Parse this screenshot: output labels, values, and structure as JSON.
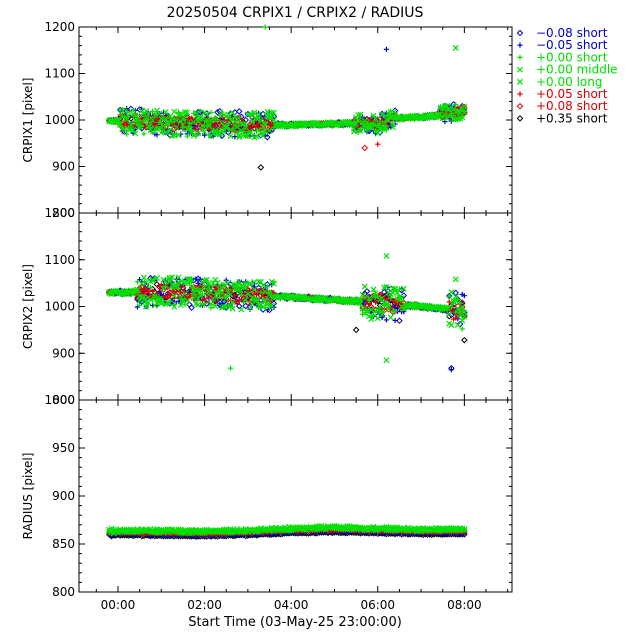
{
  "title": "20250504 CRPIX1 / CRPIX2 / RADIUS",
  "chart_data": {
    "type": "scatter",
    "title": "20250504 CRPIX1 / CRPIX2 / RADIUS",
    "xlabel": "Start Time (03-May-25 23:00:00)",
    "x_unit": "hours after 03-May-25 23:00:00",
    "x_ticks": [
      "00:00",
      "02:00",
      "04:00",
      "06:00",
      "08:00"
    ],
    "xlim": [
      -0.9,
      9.1
    ],
    "panels": [
      {
        "key": "crpix1",
        "ylabel": "CRPIX1 [pixel]",
        "ylim": [
          800,
          1200
        ],
        "y_ticks": [
          800,
          900,
          1000,
          1100,
          1200
        ],
        "trend": [
          [
            0.0,
            998
          ],
          [
            0.8,
            995
          ],
          [
            1.6,
            993
          ],
          [
            2.4,
            992
          ],
          [
            3.2,
            990
          ],
          [
            4.0,
            989
          ],
          [
            5.0,
            992
          ],
          [
            5.6,
            993
          ],
          [
            6.0,
            990
          ],
          [
            6.4,
            1003
          ],
          [
            7.2,
            1008
          ],
          [
            8.0,
            1020
          ]
        ],
        "scatter_windows": [
          [
            0.0,
            3.6,
            28
          ],
          [
            5.4,
            6.4,
            20
          ],
          [
            7.4,
            8.1,
            18
          ]
        ],
        "outliers": [
          {
            "x": 3.4,
            "y": 1200,
            "series": 2
          },
          {
            "x": 6.2,
            "y": 1152,
            "series": 1
          },
          {
            "x": 7.8,
            "y": 1155,
            "series": 3
          },
          {
            "x": 3.3,
            "y": 898,
            "series": 7
          },
          {
            "x": 6.0,
            "y": 948,
            "series": 5
          },
          {
            "x": 5.7,
            "y": 940,
            "series": 6
          }
        ]
      },
      {
        "key": "crpix2",
        "ylabel": "CRPIX2 [pixel]",
        "ylim": [
          800,
          1200
        ],
        "y_ticks": [
          800,
          900,
          1000,
          1100,
          1200
        ],
        "trend": [
          [
            0.0,
            1030
          ],
          [
            1.0,
            1032
          ],
          [
            2.0,
            1028
          ],
          [
            3.0,
            1024
          ],
          [
            4.0,
            1020
          ],
          [
            5.0,
            1014
          ],
          [
            6.0,
            1008
          ],
          [
            7.0,
            1000
          ],
          [
            8.0,
            990
          ]
        ],
        "scatter_windows": [
          [
            0.4,
            3.6,
            32
          ],
          [
            5.6,
            6.6,
            36
          ],
          [
            7.6,
            8.1,
            40
          ]
        ],
        "outliers": [
          {
            "x": 2.6,
            "y": 868,
            "series": 2
          },
          {
            "x": 6.2,
            "y": 1108,
            "series": 3
          },
          {
            "x": 6.2,
            "y": 885,
            "series": 3
          },
          {
            "x": 7.8,
            "y": 1058,
            "series": 3
          },
          {
            "x": 7.7,
            "y": 868,
            "series": 0
          },
          {
            "x": 7.7,
            "y": 865,
            "series": 1
          },
          {
            "x": 8.0,
            "y": 928,
            "series": 7
          },
          {
            "x": 5.5,
            "y": 950,
            "series": 7
          }
        ]
      },
      {
        "key": "radius",
        "ylabel": "RADIUS [pixel]",
        "ylim": [
          800,
          1000
        ],
        "y_ticks": [
          800,
          850,
          900,
          950,
          1000
        ],
        "series_offsets": [
          0,
          -0.5,
          3,
          2,
          4,
          2,
          1,
          -2
        ],
        "trend": [
          [
            0.0,
            861
          ],
          [
            2.0,
            860
          ],
          [
            3.0,
            861
          ],
          [
            4.0,
            863
          ],
          [
            5.0,
            864
          ],
          [
            6.0,
            863
          ],
          [
            7.0,
            862
          ],
          [
            8.0,
            862
          ]
        ],
        "scatter_windows": [
          [
            0.0,
            8.0,
            2
          ]
        ],
        "outliers": []
      }
    ],
    "x_start": -0.2,
    "x_end": 8.0,
    "legend": [
      {
        "label": "−0.08 short",
        "marker": "diamond",
        "color": "#0000d0"
      },
      {
        "label": "−0.05 short",
        "marker": "plus",
        "color": "#0000d0"
      },
      {
        "label": "+0.00 short",
        "marker": "plus",
        "color": "#00e000"
      },
      {
        "label": "+0.00 middle",
        "marker": "x",
        "color": "#00e000"
      },
      {
        "label": "+0.00 long",
        "marker": "x",
        "color": "#00e000"
      },
      {
        "label": "+0.05 short",
        "marker": "plus",
        "color": "#e00000"
      },
      {
        "label": "+0.08 short",
        "marker": "diamond",
        "color": "#e00000"
      },
      {
        "label": "+0.35 short",
        "marker": "diamond",
        "color": "#000000"
      }
    ],
    "legend_placement": "right, outside plot"
  }
}
